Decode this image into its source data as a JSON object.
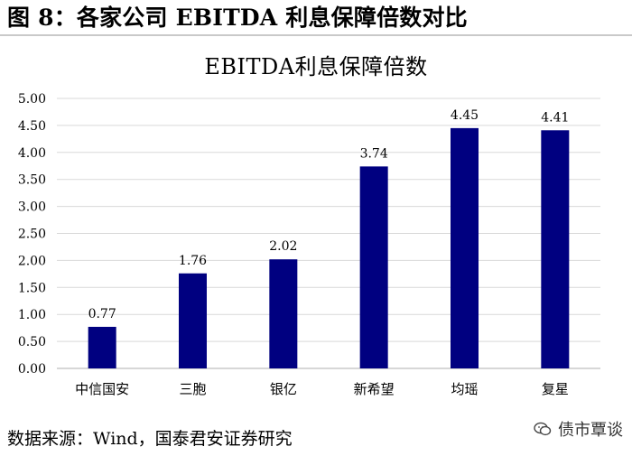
{
  "header": {
    "title": "图 8：各家公司 EBITDA 利息保障倍数对比"
  },
  "chart_data": {
    "type": "bar",
    "title": "EBITDA利息保障倍数",
    "xlabel": "",
    "ylabel": "",
    "categories": [
      "中信国安",
      "三胞",
      "银亿",
      "新希望",
      "均瑶",
      "复星"
    ],
    "values": [
      0.77,
      1.76,
      2.02,
      3.74,
      4.45,
      4.41
    ],
    "data_labels": [
      "0.77",
      "1.76",
      "2.02",
      "3.74",
      "4.45",
      "4.41"
    ],
    "yticks": [
      "0.00",
      "0.50",
      "1.00",
      "1.50",
      "2.00",
      "2.50",
      "3.00",
      "3.50",
      "4.00",
      "4.50",
      "5.00"
    ],
    "ylim": [
      0,
      5
    ],
    "grid": true,
    "legend": "none",
    "bar_color": "#000080"
  },
  "source": {
    "text": "数据来源：Wind，国泰君安证券研究"
  },
  "watermark": {
    "text": "债市覃谈"
  },
  "colors": {
    "axis": "#bfbfbf",
    "grid": "#d9d9d9",
    "header_rule": "#c9c9c9"
  }
}
